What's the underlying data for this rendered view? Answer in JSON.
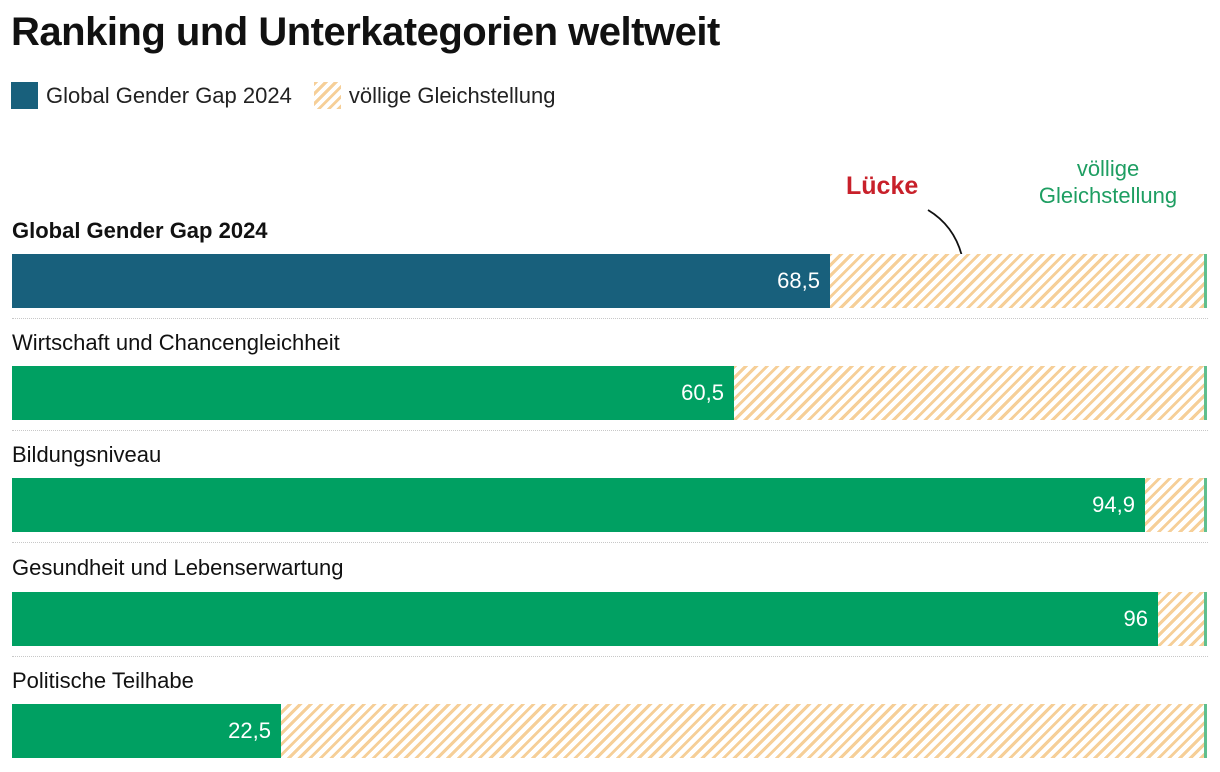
{
  "chart_data": {
    "type": "bar",
    "title": "Ranking und Unterkategorien weltweit",
    "legend": [
      {
        "label": "Global Gender Gap 2024",
        "color": "#18607c"
      },
      {
        "label": "völlige Gleichstellung",
        "color": "#f6cf98",
        "pattern": "hatched"
      }
    ],
    "xlim": [
      0,
      100
    ],
    "categories": [
      "Global Gender Gap 2024",
      "Wirtschaft und Chancengleichheit",
      "Bildungsniveau",
      "Gesundheit und Lebenserwartung",
      "Politische Teilhabe"
    ],
    "values": [
      68.5,
      60.5,
      94.9,
      96,
      22.5
    ],
    "value_labels": [
      "68,5",
      "60,5",
      "94,9",
      "96",
      "22,5"
    ],
    "bar_colors": [
      "#18607c",
      "#00a062",
      "#00a062",
      "#00a062",
      "#00a062"
    ],
    "annotations": {
      "gap": "Lücke",
      "gap_color": "#c8202a",
      "equality": "völlige Gleichstellung",
      "equality_color": "#1e9e62"
    }
  }
}
